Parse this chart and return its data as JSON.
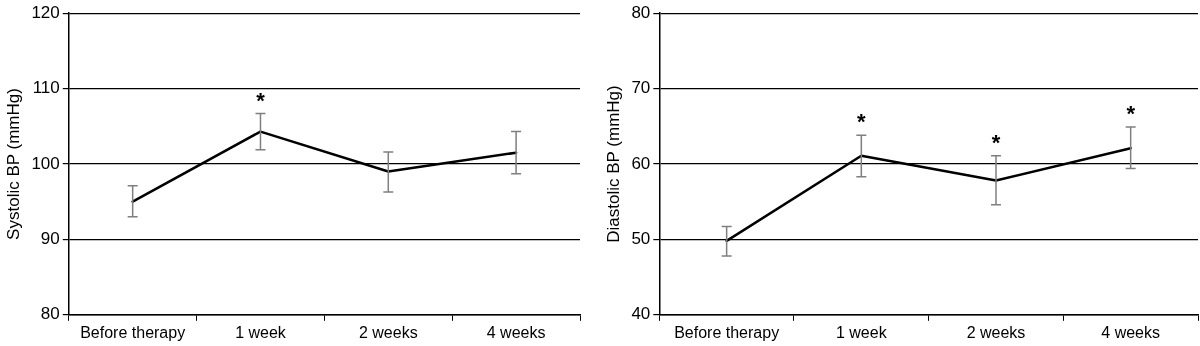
{
  "chart_data": [
    {
      "type": "line",
      "ylabel": "Systolic BP (mmHg)",
      "categories": [
        "Before therapy",
        "1 week",
        "2 weeks",
        "4 weeks"
      ],
      "series": [
        {
          "color": "#000000",
          "values": [
            95.0,
            104.3,
            99.0,
            101.5
          ],
          "errors": [
            [
              93.0,
              97.1
            ],
            [
              101.9,
              106.7
            ],
            [
              96.3,
              101.6
            ],
            [
              98.7,
              104.3
            ]
          ]
        }
      ],
      "ylim": [
        80,
        120
      ],
      "yticks": [
        80,
        90,
        100,
        110,
        120
      ],
      "grid": "y",
      "legend": false,
      "marker": "none",
      "line_style": "solid",
      "annotations": [
        {
          "text": "*",
          "x": "1 week",
          "y": 106.7
        }
      ]
    },
    {
      "type": "line",
      "ylabel": "Diastolic BP (mmHg)",
      "categories": [
        "Before therapy",
        "1 week",
        "2 weeks",
        "4 weeks"
      ],
      "series": [
        {
          "color": "#000000",
          "values": [
            49.8,
            61.1,
            57.8,
            62.1
          ],
          "errors": [
            [
              47.8,
              51.7
            ],
            [
              58.3,
              63.8
            ],
            [
              54.6,
              61.1
            ],
            [
              59.4,
              64.9
            ]
          ]
        }
      ],
      "ylim": [
        40,
        80
      ],
      "yticks": [
        40,
        50,
        60,
        70,
        80
      ],
      "grid": "y",
      "legend": false,
      "marker": "none",
      "line_style": "solid",
      "annotations": [
        {
          "text": "*",
          "x": "1 week",
          "y": 63.8
        },
        {
          "text": "*",
          "x": "2 weeks",
          "y": 61.1
        },
        {
          "text": "*",
          "x": "4 weeks",
          "y": 64.9
        }
      ]
    }
  ]
}
